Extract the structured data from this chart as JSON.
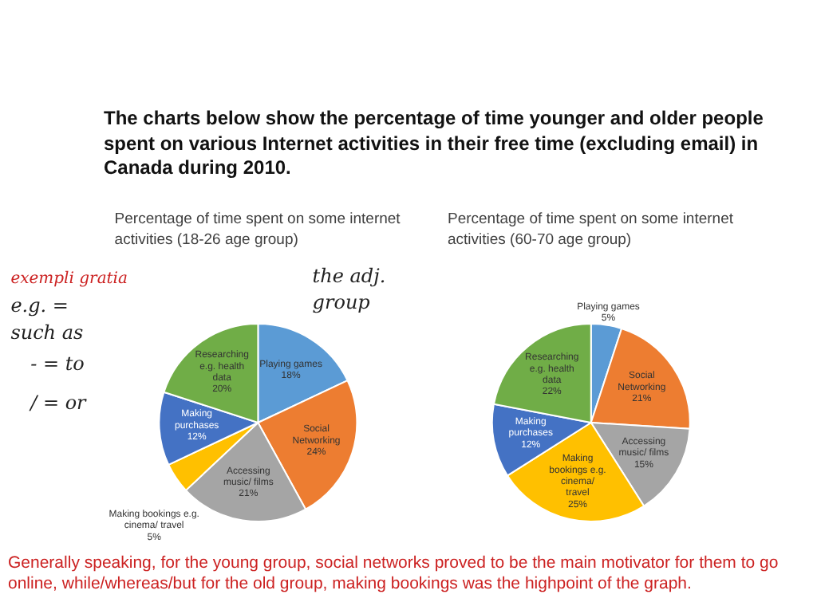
{
  "chart_data": [
    {
      "type": "pie",
      "title": "Percentage of time spent on some internet activities (18-26 age group)",
      "categories": [
        "Playing games",
        "Social Networking",
        "Accessing music/ films",
        "Making bookings e.g. cinema/ travel",
        "Making purchases",
        "Researching e.g. health data"
      ],
      "values": [
        18,
        24,
        21,
        5,
        12,
        20
      ],
      "value_labels": [
        "18%",
        "24%",
        "21%",
        "5%",
        "12%",
        "20%"
      ],
      "colors": [
        "#5b9bd5",
        "#ed7d31",
        "#a5a5a5",
        "#ffc000",
        "#4472c4",
        "#70ad47"
      ],
      "annotations": [
        "The charts below show the percentage of time younger and older people spent on various Internet activities in their free time (excluding email) in Canada during 2010.",
        "exempli gratia",
        "e.g. = such as",
        "- = to",
        "/ = or",
        "the adj. group"
      ]
    },
    {
      "type": "pie",
      "title": "Percentage of time spent on some internet activities (60-70 age group)",
      "categories": [
        "Playing games",
        "Social Networking",
        "Accessing music/ films",
        "Making bookings e.g. cinema/ travel",
        "Making purchases",
        "Researching e.g. health data"
      ],
      "values": [
        5,
        21,
        15,
        25,
        12,
        22
      ],
      "value_labels": [
        "5%",
        "21%",
        "15%",
        "25%",
        "12%",
        "22%"
      ],
      "colors": [
        "#5b9bd5",
        "#ed7d31",
        "#a5a5a5",
        "#ffc000",
        "#4472c4",
        "#70ad47"
      ],
      "annotations": [
        "Generally speaking, for the young group, social networks proved to be the main motivator for them to go online, while/whereas/but for the old group, making bookings was the highpoint of the graph."
      ]
    }
  ]
}
